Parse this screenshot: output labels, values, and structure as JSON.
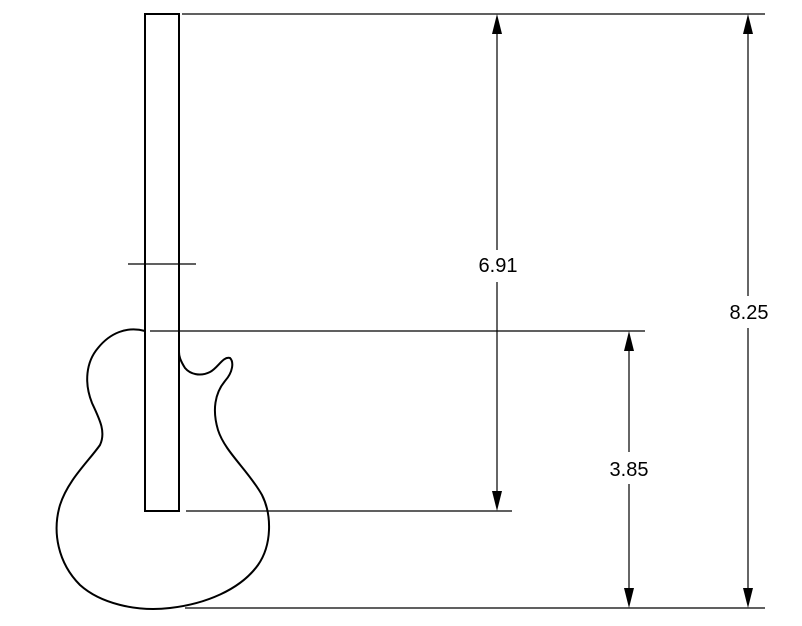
{
  "dimensions": {
    "neck_length": "6.91",
    "body_length": "3.85",
    "total_length": "8.25"
  }
}
